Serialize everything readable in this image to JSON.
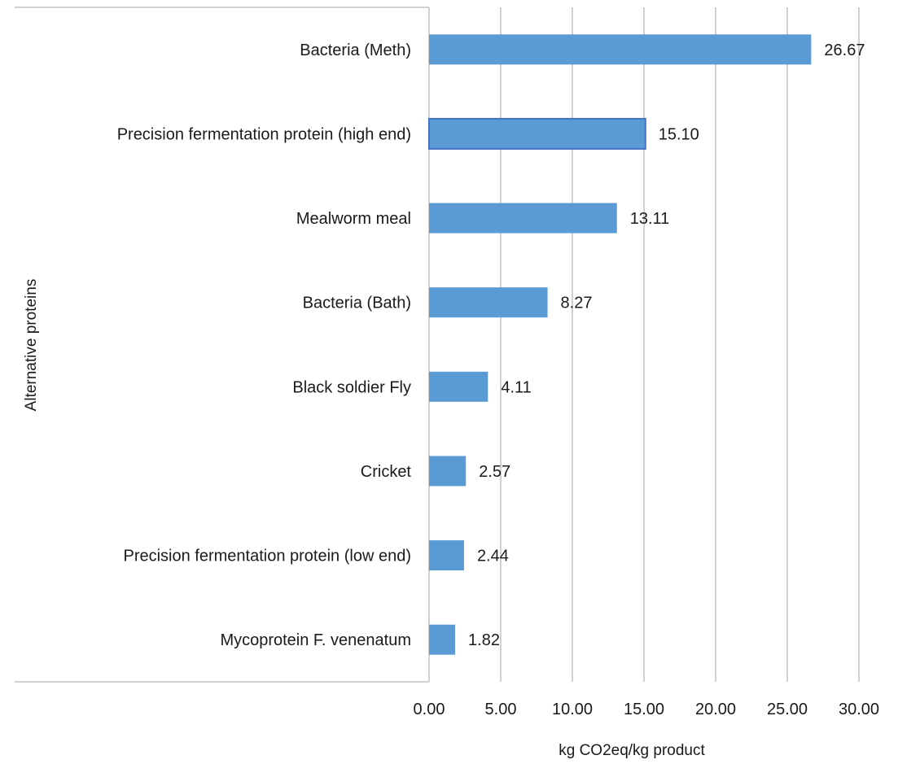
{
  "chart_data": {
    "type": "bar",
    "orientation": "horizontal",
    "categories": [
      "Bacteria (Meth)",
      "Precision fermentation protein (high end)",
      "Mealworm meal",
      "Bacteria (Bath)",
      "Black soldier Fly",
      "Cricket",
      "Precision fermentation protein (low end)",
      "Mycoprotein F. venenatum"
    ],
    "values": [
      26.67,
      15.1,
      13.11,
      8.27,
      4.11,
      2.57,
      2.44,
      1.82
    ],
    "value_labels": [
      "26.67",
      "15.10",
      "13.11",
      "8.27",
      "4.11",
      "2.57",
      "2.44",
      "1.82"
    ],
    "xlabel": "kg CO2eq/kg product",
    "ylabel": "Alternative proteins",
    "xlim": [
      0,
      30
    ],
    "x_ticks": [
      "0.00",
      "5.00",
      "10.00",
      "15.00",
      "20.00",
      "25.00",
      "30.00"
    ],
    "grid": "vertical",
    "legend": "none",
    "bar_color": "#5b9bd5",
    "highlight_edge_color": "#4472c4",
    "gridline_color": "#d0d0d0"
  }
}
